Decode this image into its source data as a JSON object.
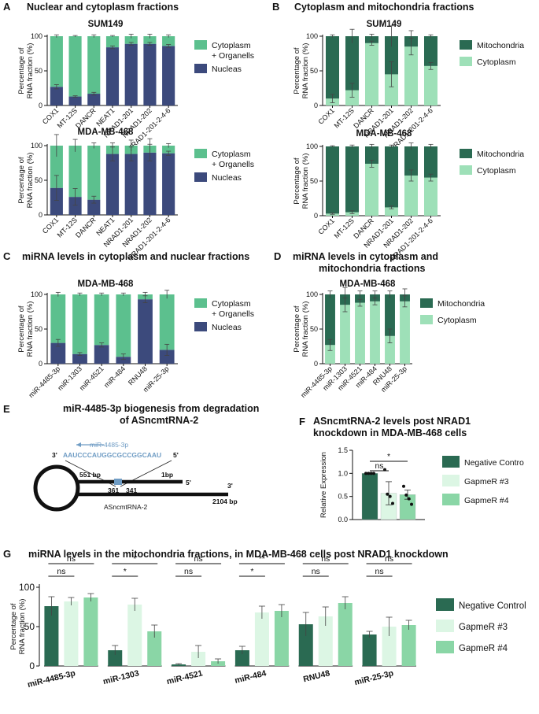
{
  "colors": {
    "nucleus": "#3c4a7c",
    "cytoplasm_organelles": "#5cc08e",
    "mitochondria": "#2a6a52",
    "cytoplasm": "#9ee0b8",
    "neg_ctrl": "#2a6a52",
    "gapmer3": "#dcf6e4",
    "gapmer4": "#8ad6a6",
    "mirna_seq": "#6f9cc4",
    "diagram_site": "#6f9cc4"
  },
  "panels": {
    "A": {
      "letter": "A",
      "title": "Nuclear and cytoplasm fractions"
    },
    "B": {
      "letter": "B",
      "title": "Cytoplasm and mitochondria fractions"
    },
    "C": {
      "letter": "C",
      "title": "miRNA levels in cytoplasm and nuclear fractions"
    },
    "D": {
      "letter": "D",
      "title_line1": "miRNA levels in cytoplasm and",
      "title_line2": "mitochondria fractions"
    },
    "E": {
      "letter": "E",
      "title_line1": "miR-4485-3p biogenesis from degradation",
      "title_line2": "of ASncmtRNA-2",
      "mirna_label": "miR-4485-3p",
      "three_prime": "3'",
      "five_prime": "5'",
      "sequence": "AAUCCCAUGGCGCCGGCAAU",
      "pos_551": "551 bp",
      "pos_1": "1bp",
      "pos_361": "361",
      "pos_341": "341",
      "end_5": "5'",
      "end_3": "3'",
      "pos_2104": "2104 bp",
      "rna_name": "ASncmtRNA-2"
    },
    "F": {
      "letter": "F",
      "title_line1": "ASncmtRNA-2 levels post NRAD1",
      "title_line2": "knockdown in MDA-MB-468 cells"
    },
    "G": {
      "letter": "G",
      "title": "miRNA levels in the mitochondria fractions, in MDA-MB-468 cells post NRAD1 knockdown"
    }
  },
  "chart_data": [
    {
      "id": "A1",
      "type": "bar",
      "stacked": true,
      "title": "SUM149",
      "ylabel": "Percentage of RNA fraction (%)",
      "ylim": [
        0,
        100
      ],
      "yticks": [
        0,
        50,
        100
      ],
      "categories": [
        "COX1",
        "MT-12S",
        "DANCR",
        "NEAT1",
        "NRAD1-201",
        "NRAD1-202",
        "NRAD1-201-2-4-6"
      ],
      "series": [
        {
          "name": "Nucleas",
          "color_key": "nucleus",
          "values": [
            27,
            13,
            17,
            84,
            89,
            89,
            86
          ],
          "err": [
            3,
            1,
            2,
            2,
            2,
            2,
            2
          ]
        },
        {
          "name": "Cytoplasm + Organells",
          "color_key": "cytoplasm_organelles",
          "values": [
            73,
            87,
            83,
            16,
            11,
            11,
            14
          ],
          "err": [
            2,
            1,
            2,
            1,
            3,
            3,
            2
          ]
        }
      ],
      "legend": [
        "Cytoplasm",
        "+ Organells",
        "Nucleas"
      ]
    },
    {
      "id": "A2",
      "type": "bar",
      "stacked": true,
      "title": "MDA-MB-468",
      "ylabel": "Percentage of RNA fraction (%)",
      "ylim": [
        0,
        100
      ],
      "yticks": [
        0,
        50,
        100
      ],
      "categories": [
        "COX1",
        "MT-12S",
        "DANCR",
        "NEAT1",
        "NRAD1-201",
        "NRAD1-202",
        "NRAD1-201-2-4-6"
      ],
      "series": [
        {
          "name": "Nucleas",
          "color_key": "nucleus",
          "values": [
            39,
            26,
            22,
            88,
            88,
            90,
            89
          ],
          "err": [
            18,
            12,
            5,
            10,
            10,
            12,
            3
          ]
        },
        {
          "name": "Cytoplasm + Organells",
          "color_key": "cytoplasm_organelles",
          "values": [
            61,
            74,
            78,
            12,
            12,
            10,
            11
          ],
          "err": [
            16,
            9,
            4,
            4,
            8,
            10,
            3
          ]
        }
      ],
      "legend": [
        "Cytoplasm",
        "+ Organells",
        "Nucleas"
      ]
    },
    {
      "id": "B1",
      "type": "bar",
      "stacked": true,
      "title": "SUM149",
      "ylabel": "Percentage of RNA fraction (%)",
      "ylim": [
        0,
        100
      ],
      "yticks": [
        0,
        50,
        100
      ],
      "categories": [
        "COX1",
        "MT-12S",
        "DANCR",
        "NRAD1-201",
        "NRAD1-202",
        "NRAD1-201-2-4-6"
      ],
      "series": [
        {
          "name": "Cytoplasm",
          "color_key": "cytoplasm",
          "values": [
            10,
            22,
            90,
            45,
            85,
            57
          ],
          "err": [
            6,
            10,
            3,
            18,
            12,
            5
          ]
        },
        {
          "name": "Mitochondria",
          "color_key": "mitochondria",
          "values": [
            90,
            78,
            10,
            55,
            15,
            43
          ],
          "err": [
            2,
            10,
            3,
            15,
            8,
            2
          ]
        }
      ],
      "legend": [
        "Mitochondria",
        "Cytoplasm"
      ]
    },
    {
      "id": "B2",
      "type": "bar",
      "stacked": true,
      "title": "MDA-MB-468",
      "ylabel": "Percentage of RNA fraction (%)",
      "ylim": [
        0,
        100
      ],
      "yticks": [
        0,
        50,
        100
      ],
      "categories": [
        "COX1",
        "MT-12S",
        "DANCR",
        "NRAD1-201",
        "NRAD1-202",
        "NRAD1-201-2-4-6"
      ],
      "series": [
        {
          "name": "Cytoplasm",
          "color_key": "cytoplasm",
          "values": [
            3,
            5,
            75,
            12,
            58,
            55
          ],
          "err": [
            1,
            2,
            5,
            2,
            8,
            5
          ]
        },
        {
          "name": "Mitochondria",
          "color_key": "mitochondria",
          "values": [
            97,
            95,
            25,
            88,
            42,
            45
          ],
          "err": [
            1,
            2,
            3,
            2,
            5,
            3
          ]
        }
      ],
      "legend": [
        "Mitochondria",
        "Cytoplasm"
      ]
    },
    {
      "id": "C",
      "type": "bar",
      "stacked": true,
      "title": "MDA-MB-468",
      "ylabel": "Percentage of RNA fraction (%)",
      "ylim": [
        0,
        100
      ],
      "yticks": [
        0,
        50,
        100
      ],
      "categories": [
        "miR-4485-3p",
        "miR-1303",
        "miR-4521",
        "miR-484",
        "RNU48",
        "miR-25-3p"
      ],
      "series": [
        {
          "name": "Nucleas",
          "color_key": "nucleus",
          "values": [
            30,
            14,
            27,
            10,
            93,
            20
          ],
          "err": [
            5,
            2,
            3,
            4,
            5,
            8
          ]
        },
        {
          "name": "Cytoplasm + Organells",
          "color_key": "cytoplasm_organelles",
          "values": [
            70,
            86,
            73,
            90,
            7,
            80
          ],
          "err": [
            3,
            2,
            2,
            2,
            3,
            6
          ]
        }
      ],
      "legend": [
        "Cytoplasm",
        "+ Organells",
        "Nucleas"
      ]
    },
    {
      "id": "D",
      "type": "bar",
      "stacked": true,
      "title": "MDA-MB-468",
      "ylabel": "Percentage of RNA fraction (%)",
      "ylim": [
        0,
        100
      ],
      "yticks": [
        0,
        50,
        100
      ],
      "categories": [
        "miR-4485-3p",
        "miR-1303",
        "miR-4521",
        "miR-484",
        "RNU48",
        "miR-25-3p"
      ],
      "series": [
        {
          "name": "Cytoplasm",
          "color_key": "cytoplasm",
          "values": [
            27,
            85,
            88,
            90,
            40,
            90
          ],
          "err": [
            8,
            10,
            5,
            5,
            10,
            8
          ]
        },
        {
          "name": "Mitochondria",
          "color_key": "mitochondria",
          "values": [
            73,
            15,
            12,
            10,
            60,
            10
          ],
          "err": [
            5,
            10,
            5,
            5,
            5,
            8
          ]
        }
      ],
      "legend": [
        "Mitochondria",
        "Cytoplasm"
      ]
    },
    {
      "id": "F",
      "type": "bar",
      "stacked": false,
      "ylabel": "Relative Expression",
      "ylim": [
        0,
        1.5
      ],
      "yticks": [
        0.0,
        0.5,
        1.0,
        1.5
      ],
      "categories": [
        "Negative Contro",
        "GapmeR #3",
        "GapmeR #4"
      ],
      "values": [
        1.0,
        0.57,
        0.54
      ],
      "err": [
        0.0,
        0.25,
        0.1
      ],
      "points": [
        [
          1.0,
          1.0,
          1.0,
          1.0
        ],
        [
          1.08,
          0.55,
          0.5,
          0.35
        ],
        [
          0.72,
          0.53,
          0.45,
          0.33
        ]
      ],
      "color_keys": [
        "neg_ctrl",
        "gapmer3",
        "gapmer4"
      ],
      "significance": [
        {
          "from": 0,
          "to": 1,
          "label": "ns"
        },
        {
          "from": 0,
          "to": 2,
          "label": "*"
        }
      ],
      "legend": [
        "Negative Contro",
        "GapmeR #3",
        "GapmeR #4"
      ]
    },
    {
      "id": "G",
      "type": "bar",
      "stacked": false,
      "ylabel": "Percentage of RNA fraction (%)",
      "ylim": [
        0,
        100
      ],
      "yticks": [
        0,
        50,
        100
      ],
      "groups": [
        "miR-4485-3p",
        "miR-1303",
        "miR-4521",
        "miR-484",
        "RNU48",
        "miR-25-3p"
      ],
      "series": [
        {
          "name": "Negative Control",
          "color_key": "neg_ctrl",
          "values": [
            76,
            20,
            2,
            20,
            53,
            40
          ],
          "err": [
            12,
            6,
            1,
            5,
            15,
            4
          ]
        },
        {
          "name": "GapmeR #3",
          "color_key": "gapmer3",
          "values": [
            82,
            78,
            18,
            68,
            63,
            50
          ],
          "err": [
            5,
            8,
            8,
            8,
            12,
            12
          ]
        },
        {
          "name": "GapmeR #4",
          "color_key": "gapmer4",
          "values": [
            87,
            44,
            6,
            70,
            80,
            52
          ],
          "err": [
            5,
            8,
            3,
            8,
            8,
            6
          ]
        }
      ],
      "significance": [
        {
          "group": 0,
          "from": 0,
          "to": 1,
          "label": "ns",
          "level": 1
        },
        {
          "group": 0,
          "from": 0,
          "to": 2,
          "label": "ns",
          "level": 2
        },
        {
          "group": 1,
          "from": 0,
          "to": 1,
          "label": "*",
          "level": 1
        },
        {
          "group": 1,
          "from": 0,
          "to": 2,
          "label": "*",
          "level": 2
        },
        {
          "group": 2,
          "from": 0,
          "to": 1,
          "label": "ns",
          "level": 1
        },
        {
          "group": 2,
          "from": 0,
          "to": 2,
          "label": "ns",
          "level": 2
        },
        {
          "group": 3,
          "from": 0,
          "to": 1,
          "label": "*",
          "level": 1
        },
        {
          "group": 3,
          "from": 0,
          "to": 2,
          "label": "**",
          "level": 2
        },
        {
          "group": 4,
          "from": 0,
          "to": 1,
          "label": "ns",
          "level": 1
        },
        {
          "group": 4,
          "from": 0,
          "to": 2,
          "label": "ns",
          "level": 2
        },
        {
          "group": 5,
          "from": 0,
          "to": 1,
          "label": "ns",
          "level": 1
        },
        {
          "group": 5,
          "from": 0,
          "to": 2,
          "label": "ns",
          "level": 2
        }
      ],
      "legend": [
        "Negative Control",
        "GapmeR #3",
        "GapmeR #4"
      ]
    }
  ]
}
